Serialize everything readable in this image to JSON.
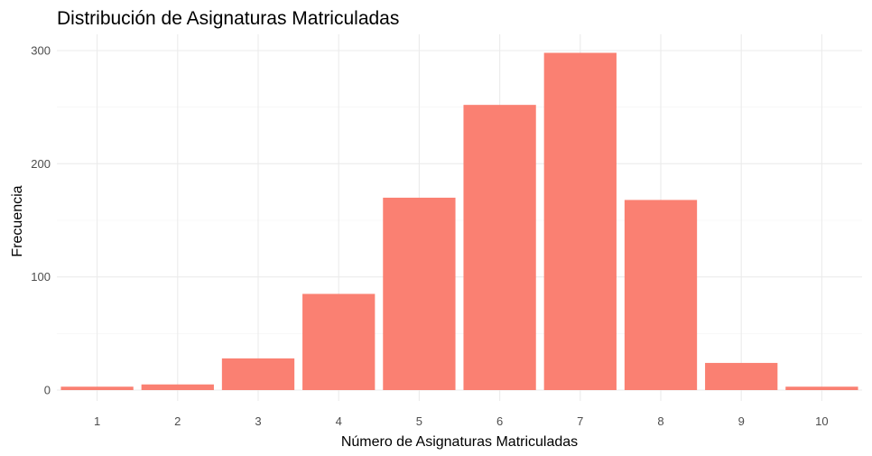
{
  "chart_data": {
    "type": "bar",
    "title": "Distribución de Asignaturas Matriculadas",
    "xlabel": "Número de Asignaturas Matriculadas",
    "ylabel": "Frecuencia",
    "categories": [
      "1",
      "2",
      "3",
      "4",
      "5",
      "6",
      "7",
      "8",
      "9",
      "10"
    ],
    "values": [
      3,
      5,
      28,
      85,
      170,
      252,
      298,
      168,
      24,
      3
    ],
    "yticks": [
      0,
      100,
      200,
      300
    ],
    "ylim": [
      0,
      305
    ],
    "bar_color": "#fa8072",
    "grid": true,
    "legend": "none"
  }
}
